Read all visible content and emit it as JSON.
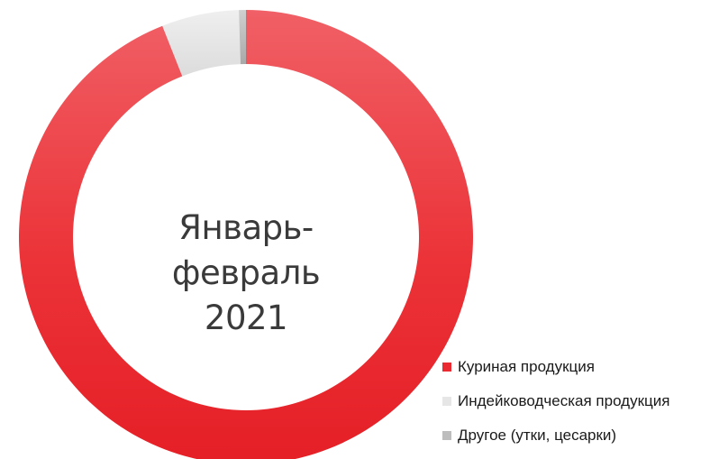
{
  "chart_data": {
    "type": "pie",
    "donut": true,
    "center_title_line1": "Январь-февраль",
    "center_title_line2": "2021",
    "categories": [
      "Куриная продукция",
      "Индейководческая продукция",
      "Другое (утки, цесарки)"
    ],
    "values": [
      94.0,
      5.5,
      0.5
    ],
    "colors": [
      "#ea2a30",
      "#e6e6e6",
      "#bdbdbd"
    ],
    "legend_position": "bottom-right"
  }
}
